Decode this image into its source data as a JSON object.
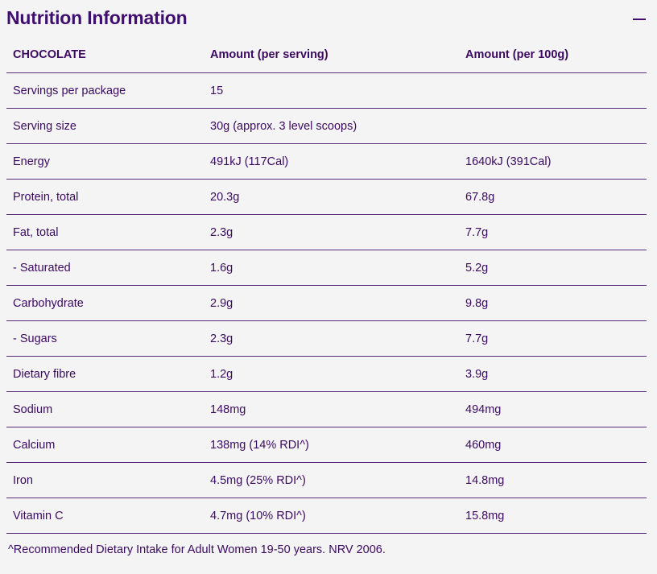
{
  "header": {
    "title": "Nutrition Information",
    "collapse_icon": "minus-icon"
  },
  "table": {
    "columns": [
      "CHOCOLATE",
      "Amount (per serving)",
      "Amount (per 100g)"
    ],
    "rows": [
      [
        "Servings per package",
        "15",
        ""
      ],
      [
        "Serving size",
        "30g (approx. 3 level scoops)",
        ""
      ],
      [
        "Energy",
        "491kJ (117Cal)",
        "1640kJ (391Cal)"
      ],
      [
        "Protein, total",
        "20.3g",
        "67.8g"
      ],
      [
        "Fat, total",
        "2.3g",
        "7.7g"
      ],
      [
        "- Saturated",
        "1.6g",
        "5.2g"
      ],
      [
        "Carbohydrate",
        "2.9g",
        "9.8g"
      ],
      [
        "- Sugars",
        "2.3g",
        "7.7g"
      ],
      [
        "Dietary fibre",
        "1.2g",
        "3.9g"
      ],
      [
        "Sodium",
        "148mg",
        "494mg"
      ],
      [
        "Calcium",
        "138mg (14% RDI^)",
        "460mg"
      ],
      [
        "Iron",
        "4.5mg (25% RDI^)",
        "14.8mg"
      ],
      [
        "Vitamin C",
        "4.7mg (10% RDI^)",
        "15.8mg"
      ]
    ]
  },
  "footnote": "^Recommended Dietary Intake for Adult Women 19-50 years. NRV 2006.",
  "colors": {
    "text": "#3b0a5e",
    "title": "#3f0f6e",
    "rule": "#5a2a7a",
    "background": "#f4f4f5"
  }
}
